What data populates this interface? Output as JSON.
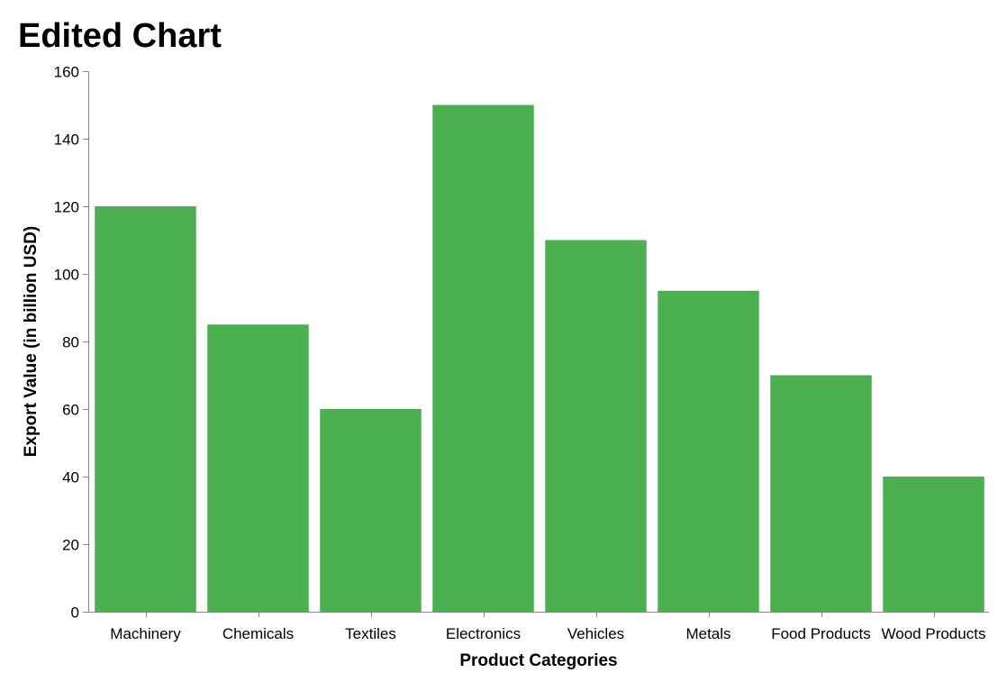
{
  "chart_data": {
    "type": "bar",
    "title": "Edited Chart",
    "xlabel": "Product Categories",
    "ylabel": "Export Value (in billion USD)",
    "categories": [
      "Machinery",
      "Chemicals",
      "Textiles",
      "Electronics",
      "Vehicles",
      "Metals",
      "Food Products",
      "Wood Products"
    ],
    "values": [
      120,
      85,
      60,
      150,
      110,
      95,
      70,
      40
    ],
    "ylim": [
      0,
      160
    ],
    "yticks": [
      0,
      20,
      40,
      60,
      80,
      100,
      120,
      140,
      160
    ],
    "grid": false,
    "legend": "none",
    "colors": {
      "bar": "#4caf50",
      "axis": "#888888",
      "text": "#000000"
    }
  }
}
